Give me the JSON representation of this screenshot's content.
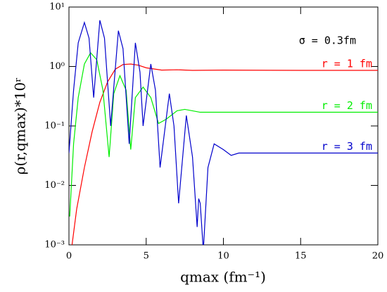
{
  "chart_data": {
    "type": "line",
    "xlabel": "qmax (fm⁻¹)",
    "ylabel": "ρ(r,qmax)*10ʳ",
    "annotations": [
      "σ = 0.3fm"
    ],
    "log_y": true,
    "xlim": [
      0,
      20
    ],
    "ylim": [
      0.001,
      10
    ],
    "xticks": [
      0,
      5,
      10,
      15,
      20
    ],
    "yticks": [
      {
        "value": 0.001,
        "label": "10⁻³"
      },
      {
        "value": 0.01,
        "label": "10⁻²"
      },
      {
        "value": 0.1,
        "label": "10⁻¹"
      },
      {
        "value": 1,
        "label": "10⁰"
      },
      {
        "value": 10,
        "label": "10¹"
      }
    ],
    "series": [
      {
        "name": "r = 1 fm",
        "color": "#ff0000",
        "x": [
          0.2,
          0.5,
          1,
          1.5,
          2,
          2.5,
          3,
          3.5,
          4,
          4.5,
          5,
          6,
          7,
          8,
          10,
          15,
          20
        ],
        "values": [
          0.001,
          0.004,
          0.02,
          0.08,
          0.25,
          0.55,
          0.9,
          1.08,
          1.1,
          1.05,
          0.95,
          0.87,
          0.88,
          0.86,
          0.87,
          0.86,
          0.86
        ]
      },
      {
        "name": "r = 2 fm",
        "color": "#00ee00",
        "x": [
          0.05,
          0.3,
          0.6,
          1.0,
          1.4,
          1.8,
          2.2,
          2.6,
          2.9,
          3.3,
          3.7,
          4.0,
          4.3,
          4.8,
          5.3,
          5.8,
          6.3,
          7.0,
          7.5,
          8.5,
          10,
          15,
          20
        ],
        "values": [
          0.003,
          0.05,
          0.3,
          1.1,
          1.7,
          1.3,
          0.4,
          0.03,
          0.35,
          0.7,
          0.4,
          0.04,
          0.3,
          0.45,
          0.3,
          0.11,
          0.13,
          0.18,
          0.19,
          0.17,
          0.17,
          0.17,
          0.17
        ]
      },
      {
        "name": "r = 3 fm",
        "color": "#0000cc",
        "x": [
          0.0,
          0.3,
          0.6,
          1.0,
          1.3,
          1.6,
          2.0,
          2.3,
          2.7,
          3.2,
          3.5,
          3.9,
          4.3,
          4.6,
          4.8,
          5.3,
          5.6,
          5.9,
          6.5,
          6.8,
          7.1,
          7.6,
          8.0,
          8.3,
          8.4,
          8.5,
          8.7,
          9.0,
          9.4,
          10.0,
          10.5,
          11,
          15,
          20
        ],
        "values": [
          0.035,
          0.4,
          2.5,
          5.5,
          3.0,
          0.3,
          6.0,
          3.0,
          0.1,
          4.0,
          2.0,
          0.05,
          2.5,
          0.8,
          0.1,
          1.1,
          0.4,
          0.02,
          0.35,
          0.1,
          0.005,
          0.15,
          0.03,
          0.002,
          0.006,
          0.005,
          0.0008,
          0.02,
          0.05,
          0.04,
          0.032,
          0.035,
          0.035,
          0.035
        ]
      }
    ]
  }
}
